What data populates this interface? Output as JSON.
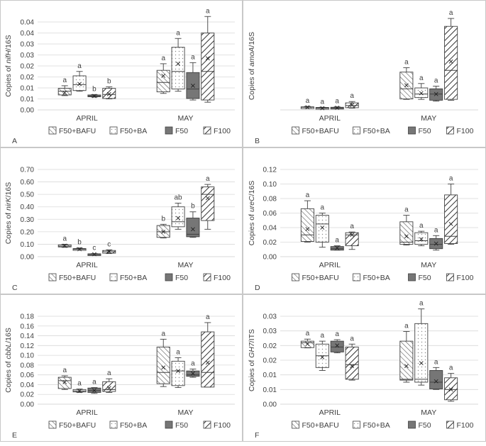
{
  "legend": [
    "F50+BAFU",
    "F50+BA",
    "F50",
    "F100"
  ],
  "months": [
    "APRIL",
    "MAY"
  ],
  "colors": {
    "axis": "#d9d9d9",
    "grid": "#d9d9d9",
    "text": "#404040",
    "box_stroke": "#404040",
    "f50_fill": "#767676",
    "hatch": "#595959",
    "dots": "#8c8c8c"
  },
  "chart_data": [
    {
      "type": "box",
      "panel_label": "A",
      "ylabel_prefix": "Copies of ",
      "ylabel_gene": "nifH",
      "ylabel_suffix": "/16S",
      "ylim": [
        0,
        0.04
      ],
      "yticks": [
        "0.00",
        "0.005",
        "0.01",
        "0.015",
        "0.02",
        "0.025",
        "0.03",
        "0.035",
        "0.04"
      ],
      "ytick_labels": [
        "0.00",
        "0.01",
        "0.01",
        "0.02",
        "0.02",
        "0.03",
        "0.03",
        "0.04",
        "0.04"
      ],
      "ytick_values": [
        0,
        0.005,
        0.01,
        0.015,
        0.02,
        0.025,
        0.03,
        0.035,
        0.04
      ],
      "categories": [
        "APRIL",
        "MAY"
      ],
      "series": [
        {
          "name": "F50+BAFU",
          "boxes": [
            {
              "min": 0.0065,
              "q1": 0.0068,
              "median": 0.0085,
              "q3": 0.0098,
              "max": 0.011,
              "mean": 0.0078,
              "letter": "a"
            },
            {
              "min": 0.0075,
              "q1": 0.0082,
              "median": 0.0125,
              "q3": 0.018,
              "max": 0.021,
              "mean": 0.0155,
              "letter": "a"
            }
          ]
        },
        {
          "name": "F50+BA",
          "boxes": [
            {
              "min": 0.0085,
              "q1": 0.0088,
              "median": 0.0115,
              "q3": 0.0155,
              "max": 0.0175,
              "mean": 0.0118,
              "letter": "a"
            },
            {
              "min": 0.0085,
              "q1": 0.0095,
              "median": 0.0175,
              "q3": 0.0285,
              "max": 0.0325,
              "mean": 0.021,
              "letter": "a"
            }
          ]
        },
        {
          "name": "F50",
          "boxes": [
            {
              "min": 0.0058,
              "q1": 0.006,
              "median": 0.0063,
              "q3": 0.0068,
              "max": 0.007,
              "mean": 0.0063,
              "letter": "b"
            },
            {
              "min": 0.0045,
              "q1": 0.0052,
              "median": 0.0095,
              "q3": 0.017,
              "max": 0.0215,
              "mean": 0.011,
              "letter": "a"
            }
          ]
        },
        {
          "name": "F100",
          "boxes": [
            {
              "min": 0.005,
              "q1": 0.0052,
              "median": 0.007,
              "q3": 0.0098,
              "max": 0.0105,
              "mean": 0.0072,
              "letter": "b"
            },
            {
              "min": 0.0035,
              "q1": 0.0045,
              "median": 0.0175,
              "q3": 0.035,
              "max": 0.0425,
              "mean": 0.0235,
              "letter": "a"
            }
          ]
        }
      ]
    },
    {
      "type": "box",
      "panel_label": "B",
      "ylabel_prefix": "Copies of ",
      "ylabel_gene": "amoA",
      "ylabel_suffix": "/16S",
      "ylim": [
        0,
        1
      ],
      "ytick_labels": [],
      "ytick_values": [],
      "categories": [
        "APRIL",
        "MAY"
      ],
      "series": [
        {
          "name": "F50+BAFU",
          "boxes": [
            {
              "min": 0.02,
              "q1": 0.025,
              "median": 0.03,
              "q3": 0.035,
              "max": 0.04,
              "mean": 0.03,
              "letter": "a"
            },
            {
              "min": 0.12,
              "q1": 0.125,
              "median": 0.24,
              "q3": 0.43,
              "max": 0.48,
              "mean": 0.28,
              "letter": "a"
            }
          ]
        },
        {
          "name": "F50+BA",
          "boxes": [
            {
              "min": 0.012,
              "q1": 0.015,
              "median": 0.02,
              "q3": 0.028,
              "max": 0.03,
              "mean": 0.02,
              "letter": "a"
            },
            {
              "min": 0.12,
              "q1": 0.14,
              "median": 0.18,
              "q3": 0.25,
              "max": 0.3,
              "mean": 0.19,
              "letter": "a"
            }
          ]
        },
        {
          "name": "F50",
          "boxes": [
            {
              "min": 0.015,
              "q1": 0.018,
              "median": 0.025,
              "q3": 0.03,
              "max": 0.035,
              "mean": 0.025,
              "letter": "a"
            },
            {
              "min": 0.1,
              "q1": 0.11,
              "median": 0.18,
              "q3": 0.24,
              "max": 0.27,
              "mean": 0.18,
              "letter": "a"
            }
          ]
        },
        {
          "name": "F100",
          "boxes": [
            {
              "min": 0.02,
              "q1": 0.025,
              "median": 0.05,
              "q3": 0.08,
              "max": 0.095,
              "mean": 0.055,
              "letter": "a"
            },
            {
              "min": 0.11,
              "q1": 0.12,
              "median": 0.45,
              "q3": 0.95,
              "max": 1.04,
              "mean": 0.55,
              "letter": "a"
            }
          ]
        }
      ]
    },
    {
      "type": "box",
      "panel_label": "C",
      "ylabel_prefix": "Copies of ",
      "ylabel_gene": "nirK",
      "ylabel_suffix": "/16S",
      "ylim": [
        0,
        0.7
      ],
      "ytick_labels": [
        "0.00",
        "0.10",
        "0.20",
        "0.30",
        "0.40",
        "0.50",
        "0.60",
        "0.70"
      ],
      "ytick_values": [
        0,
        0.1,
        0.2,
        0.3,
        0.4,
        0.5,
        0.6,
        0.7
      ],
      "categories": [
        "APRIL",
        "MAY"
      ],
      "series": [
        {
          "name": "F50+BAFU",
          "boxes": [
            {
              "min": 0.075,
              "q1": 0.078,
              "median": 0.085,
              "q3": 0.095,
              "max": 0.1,
              "mean": 0.088,
              "letter": "a"
            },
            {
              "min": 0.15,
              "q1": 0.155,
              "median": 0.2,
              "q3": 0.25,
              "max": 0.26,
              "mean": 0.2,
              "letter": "b"
            }
          ]
        },
        {
          "name": "F50+BA",
          "boxes": [
            {
              "min": 0.052,
              "q1": 0.055,
              "median": 0.06,
              "q3": 0.065,
              "max": 0.07,
              "mean": 0.06,
              "letter": "b"
            },
            {
              "min": 0.22,
              "q1": 0.24,
              "median": 0.28,
              "q3": 0.4,
              "max": 0.43,
              "mean": 0.31,
              "letter": "ab"
            }
          ]
        },
        {
          "name": "F50",
          "boxes": [
            {
              "min": 0.012,
              "q1": 0.015,
              "median": 0.02,
              "q3": 0.023,
              "max": 0.025,
              "mean": 0.02,
              "letter": "c"
            },
            {
              "min": 0.155,
              "q1": 0.16,
              "median": 0.18,
              "q3": 0.31,
              "max": 0.36,
              "mean": 0.22,
              "letter": "b"
            }
          ]
        },
        {
          "name": "F100",
          "boxes": [
            {
              "min": 0.025,
              "q1": 0.028,
              "median": 0.04,
              "q3": 0.05,
              "max": 0.055,
              "mean": 0.04,
              "letter": "c"
            },
            {
              "min": 0.22,
              "q1": 0.29,
              "median": 0.5,
              "q3": 0.56,
              "max": 0.58,
              "mean": 0.47,
              "letter": "a"
            }
          ]
        }
      ]
    },
    {
      "type": "box",
      "panel_label": "D",
      "ylabel_prefix": "Copies of ",
      "ylabel_gene": "ureC",
      "ylabel_suffix": "/16S",
      "ylim": [
        0,
        0.12
      ],
      "ytick_labels": [
        "0.00",
        "0.02",
        "0.04",
        "0.06",
        "0.08",
        "0.10",
        "0.12"
      ],
      "ytick_values": [
        0,
        0.02,
        0.04,
        0.06,
        0.08,
        0.1,
        0.12
      ],
      "categories": [
        "APRIL",
        "MAY"
      ],
      "series": [
        {
          "name": "F50+BAFU",
          "boxes": [
            {
              "min": 0.02,
              "q1": 0.021,
              "median": 0.03,
              "q3": 0.066,
              "max": 0.077,
              "mean": 0.038,
              "letter": "a"
            },
            {
              "min": 0.016,
              "q1": 0.017,
              "median": 0.02,
              "q3": 0.048,
              "max": 0.057,
              "mean": 0.028,
              "letter": "a"
            }
          ]
        },
        {
          "name": "F50+BA",
          "boxes": [
            {
              "min": 0.013,
              "q1": 0.02,
              "median": 0.045,
              "q3": 0.057,
              "max": 0.06,
              "mean": 0.04,
              "letter": "a"
            },
            {
              "min": 0.015,
              "q1": 0.017,
              "median": 0.022,
              "q3": 0.033,
              "max": 0.035,
              "mean": 0.024,
              "letter": "a"
            }
          ]
        },
        {
          "name": "F50",
          "boxes": [
            {
              "min": 0.009,
              "q1": 0.009,
              "median": 0.011,
              "q3": 0.014,
              "max": 0.015,
              "mean": 0.012,
              "letter": "a"
            },
            {
              "min": 0.009,
              "q1": 0.011,
              "median": 0.017,
              "q3": 0.025,
              "max": 0.029,
              "mean": 0.018,
              "letter": "a"
            }
          ]
        },
        {
          "name": "F100",
          "boxes": [
            {
              "min": 0.01,
              "q1": 0.015,
              "median": 0.03,
              "q3": 0.033,
              "max": 0.034,
              "mean": 0.03,
              "letter": "a"
            },
            {
              "min": 0.017,
              "q1": 0.018,
              "median": 0.028,
              "q3": 0.085,
              "max": 0.1,
              "mean": 0.045,
              "letter": "a"
            }
          ]
        }
      ]
    },
    {
      "type": "box",
      "panel_label": "E",
      "ylabel_prefix": "Copies of ",
      "ylabel_gene": "cbbL",
      "ylabel_suffix": "/16S",
      "ylim": [
        0,
        0.18
      ],
      "ytick_labels": [
        "0.00",
        "0.02",
        "0.04",
        "0.06",
        "0.08",
        "0.10",
        "0.12",
        "0.14",
        "0.16",
        "0.18"
      ],
      "ytick_values": [
        0,
        0.02,
        0.04,
        0.06,
        0.08,
        0.1,
        0.12,
        0.14,
        0.16,
        0.18
      ],
      "categories": [
        "APRIL",
        "MAY"
      ],
      "series": [
        {
          "name": "F50+BAFU",
          "boxes": [
            {
              "min": 0.03,
              "q1": 0.032,
              "median": 0.048,
              "q3": 0.055,
              "max": 0.058,
              "mean": 0.045,
              "letter": "a"
            },
            {
              "min": 0.036,
              "q1": 0.042,
              "median": 0.065,
              "q3": 0.117,
              "max": 0.133,
              "mean": 0.075,
              "letter": "a"
            }
          ]
        },
        {
          "name": "F50+BA",
          "boxes": [
            {
              "min": 0.024,
              "q1": 0.025,
              "median": 0.027,
              "q3": 0.03,
              "max": 0.031,
              "mean": 0.027,
              "letter": "a"
            },
            {
              "min": 0.034,
              "q1": 0.038,
              "median": 0.068,
              "q3": 0.088,
              "max": 0.095,
              "mean": 0.068,
              "letter": "a"
            }
          ]
        },
        {
          "name": "F50",
          "boxes": [
            {
              "min": 0.022,
              "q1": 0.024,
              "median": 0.028,
              "q3": 0.033,
              "max": 0.034,
              "mean": 0.028,
              "letter": "a"
            },
            {
              "min": 0.055,
              "q1": 0.057,
              "median": 0.06,
              "q3": 0.068,
              "max": 0.072,
              "mean": 0.063,
              "letter": "a"
            }
          ]
        },
        {
          "name": "F100",
          "boxes": [
            {
              "min": 0.024,
              "q1": 0.026,
              "median": 0.03,
              "q3": 0.046,
              "max": 0.052,
              "mean": 0.033,
              "letter": "a"
            },
            {
              "min": 0.035,
              "q1": 0.035,
              "median": 0.065,
              "q3": 0.148,
              "max": 0.167,
              "mean": 0.085,
              "letter": "a"
            }
          ]
        }
      ]
    },
    {
      "type": "box",
      "panel_label": "F",
      "ylabel_prefix": "Copies of ",
      "ylabel_gene": "GH7",
      "ylabel_suffix": "/ITS",
      "ylim": [
        0,
        0.03
      ],
      "ytick_labels": [
        "0.00",
        "0.01",
        "0.01",
        "0.02",
        "0.02",
        "0.03",
        "0.03"
      ],
      "ytick_values": [
        0,
        0.005,
        0.01,
        0.015,
        0.02,
        0.025,
        0.03
      ],
      "categories": [
        "APRIL",
        "MAY"
      ],
      "series": [
        {
          "name": "F50+BAFU",
          "boxes": [
            {
              "min": 0.0192,
              "q1": 0.0193,
              "median": 0.021,
              "q3": 0.0215,
              "max": 0.0222,
              "mean": 0.0205,
              "letter": "a"
            },
            {
              "min": 0.0075,
              "q1": 0.0082,
              "median": 0.0085,
              "q3": 0.0215,
              "max": 0.0248,
              "mean": 0.013,
              "letter": "a"
            }
          ]
        },
        {
          "name": "F50+BA",
          "boxes": [
            {
              "min": 0.0115,
              "q1": 0.0125,
              "median": 0.0165,
              "q3": 0.0205,
              "max": 0.0215,
              "mean": 0.016,
              "letter": "a"
            },
            {
              "min": 0.0065,
              "q1": 0.0075,
              "median": 0.0085,
              "q3": 0.0275,
              "max": 0.0325,
              "mean": 0.014,
              "letter": "a"
            }
          ]
        },
        {
          "name": "F50",
          "boxes": [
            {
              "min": 0.0175,
              "q1": 0.0178,
              "median": 0.0195,
              "q3": 0.0215,
              "max": 0.022,
              "mean": 0.02,
              "letter": "a"
            },
            {
              "min": 0.005,
              "q1": 0.0052,
              "median": 0.0075,
              "q3": 0.0115,
              "max": 0.0125,
              "mean": 0.0078,
              "letter": "a"
            }
          ]
        },
        {
          "name": "F100",
          "boxes": [
            {
              "min": 0.0082,
              "q1": 0.0085,
              "median": 0.0135,
              "q3": 0.0195,
              "max": 0.0205,
              "mean": 0.013,
              "letter": "a"
            },
            {
              "min": 0.001,
              "q1": 0.0015,
              "median": 0.005,
              "q3": 0.009,
              "max": 0.0105,
              "mean": 0.005,
              "letter": "a"
            }
          ]
        }
      ]
    }
  ]
}
